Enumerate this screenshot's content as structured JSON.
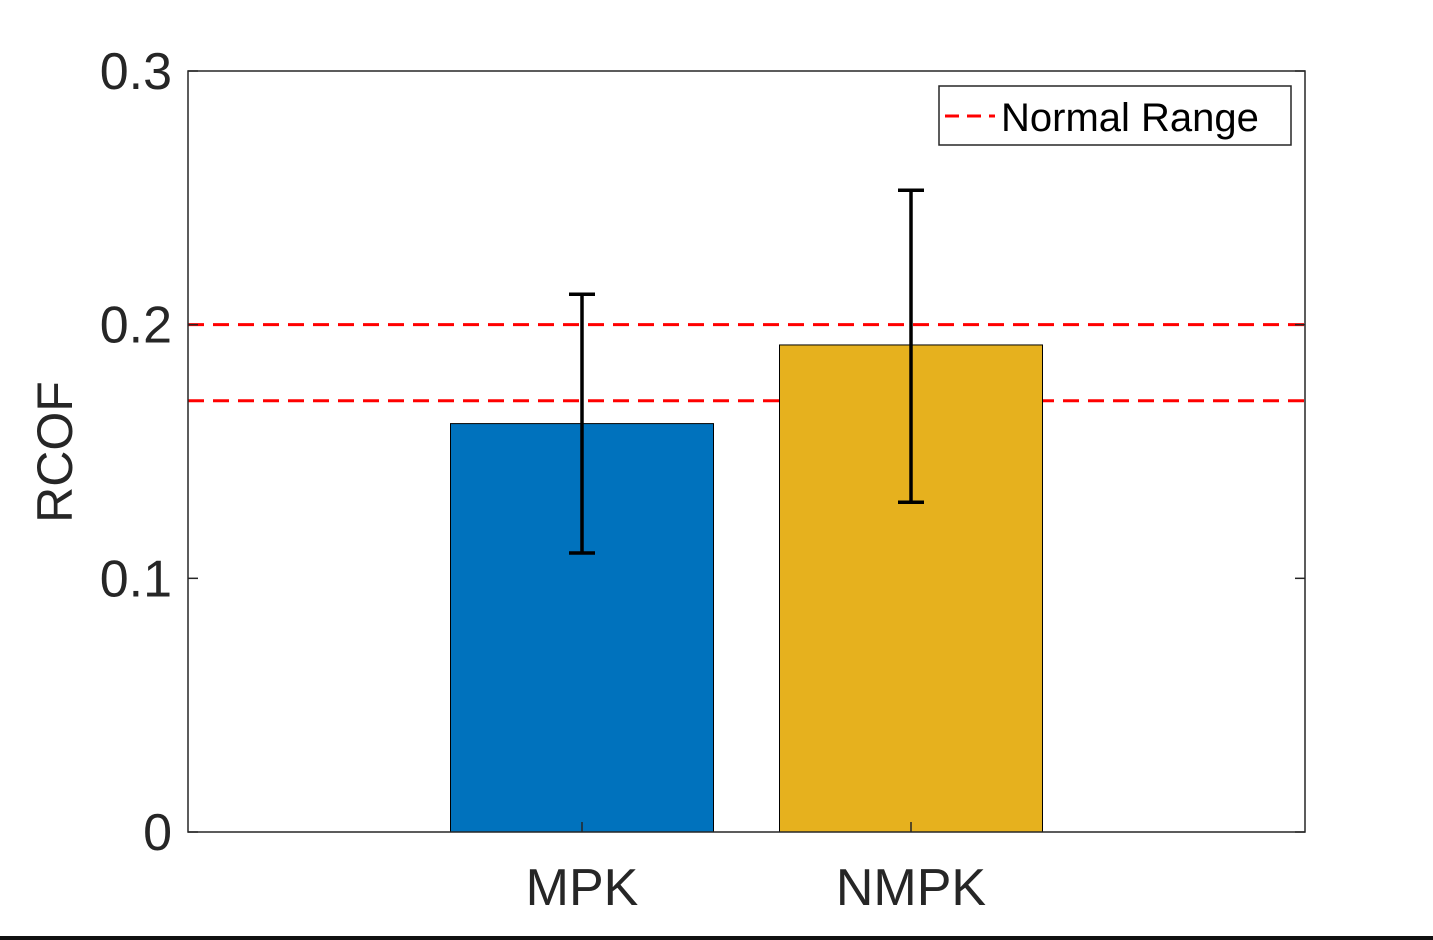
{
  "chart_data": {
    "type": "bar",
    "categories": [
      "MPK",
      "NMPK"
    ],
    "values": [
      0.161,
      0.192
    ],
    "error_low": [
      0.11,
      0.13
    ],
    "error_high": [
      0.212,
      0.253
    ],
    "bar_colors": [
      "#0072BD",
      "#E6B11E"
    ],
    "reference_lines": [
      0.17,
      0.2
    ],
    "reference_line_color": "#FF0000",
    "legend": {
      "entries": [
        "Normal Range"
      ],
      "placement": "top-right"
    },
    "title": "",
    "xlabel": "",
    "ylabel": "RCOF",
    "ylim": [
      0,
      0.3
    ],
    "yticks": [
      "0",
      "0.1",
      "0.2",
      "0.3"
    ],
    "grid": false
  }
}
